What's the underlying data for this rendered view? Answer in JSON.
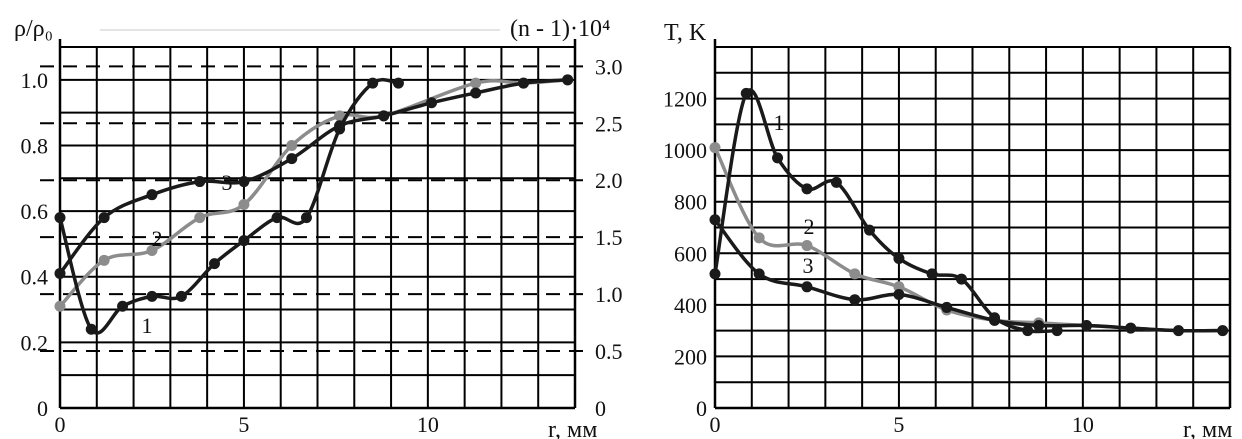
{
  "colors": {
    "dark": "#1a1a1a",
    "gray": "#8c8c8c",
    "grid": "#000000"
  },
  "chart_data": [
    {
      "type": "line",
      "title": "",
      "ylabel_left": "ρ/ρ₀",
      "ylabel_right": "(n - 1)·10⁴",
      "xlabel": "r, мм",
      "xlim": [
        0,
        14
      ],
      "ylim": [
        0,
        1.1
      ],
      "ylim_right": [
        0,
        3.17
      ],
      "x_ticks": [
        "0",
        "5",
        "10"
      ],
      "y_ticks": [
        "0",
        "0.2",
        "0.4",
        "0.6",
        "0.8",
        "1.0"
      ],
      "y_ticks_right": [
        "0",
        "0.5",
        "1.0",
        "1.5",
        "2.0",
        "2.5",
        "3.0"
      ],
      "grid": true,
      "series": [
        {
          "name": "1",
          "color": "#1a1a1a",
          "x": [
            0,
            0.85,
            1.7,
            2.5,
            3.3,
            4.2,
            5.0,
            5.9,
            6.7,
            7.6,
            8.5,
            9.2
          ],
          "y": [
            0.58,
            0.24,
            0.31,
            0.34,
            0.34,
            0.44,
            0.51,
            0.58,
            0.58,
            0.85,
            0.99,
            0.99
          ]
        },
        {
          "name": "2",
          "color": "#8c8c8c",
          "x": [
            0,
            1.2,
            2.5,
            3.8,
            5.0,
            6.3,
            7.6,
            8.8,
            11.3,
            12.6,
            13.8
          ],
          "y": [
            0.31,
            0.45,
            0.48,
            0.58,
            0.62,
            0.8,
            0.89,
            0.89,
            0.99,
            0.99,
            1.0
          ]
        },
        {
          "name": "3",
          "color": "#1a1a1a",
          "x": [
            0,
            1.2,
            2.5,
            3.8,
            5.0,
            6.3,
            7.6,
            8.8,
            10.1,
            11.3,
            12.6,
            13.8
          ],
          "y": [
            0.41,
            0.58,
            0.65,
            0.69,
            0.69,
            0.76,
            0.86,
            0.89,
            0.93,
            0.96,
            0.99,
            1.0
          ]
        }
      ],
      "annotations": [
        "1",
        "2",
        "3"
      ]
    },
    {
      "type": "line",
      "title": "",
      "ylabel": "T, K",
      "xlabel": "r, мм",
      "xlim": [
        0,
        14
      ],
      "ylim": [
        0,
        1400
      ],
      "x_ticks": [
        "0",
        "5",
        "10"
      ],
      "y_ticks": [
        "0",
        "200",
        "400",
        "600",
        "800",
        "1000",
        "1200"
      ],
      "grid": true,
      "series": [
        {
          "name": "1",
          "color": "#1a1a1a",
          "x": [
            0,
            0.85,
            1.7,
            2.5,
            3.3,
            4.2,
            5.0,
            5.9,
            6.7,
            7.6,
            8.5,
            9.3
          ],
          "y": [
            520,
            1220,
            970,
            850,
            875,
            690,
            580,
            520,
            500,
            350,
            300,
            300
          ]
        },
        {
          "name": "2",
          "color": "#8c8c8c",
          "x": [
            0,
            1.2,
            2.5,
            3.8,
            5.0,
            6.3,
            7.6,
            8.8,
            10.1,
            11.3,
            12.6,
            13.8
          ],
          "y": [
            1010,
            660,
            630,
            520,
            470,
            380,
            340,
            330,
            320,
            310,
            300,
            300
          ]
        },
        {
          "name": "3",
          "color": "#1a1a1a",
          "x": [
            0,
            1.2,
            2.5,
            3.8,
            5.0,
            6.3,
            7.6,
            8.8,
            10.1,
            11.3,
            12.6,
            13.8
          ],
          "y": [
            730,
            520,
            470,
            420,
            440,
            390,
            340,
            320,
            320,
            310,
            300,
            300
          ]
        }
      ],
      "annotations": [
        "1",
        "2",
        "3"
      ]
    }
  ]
}
